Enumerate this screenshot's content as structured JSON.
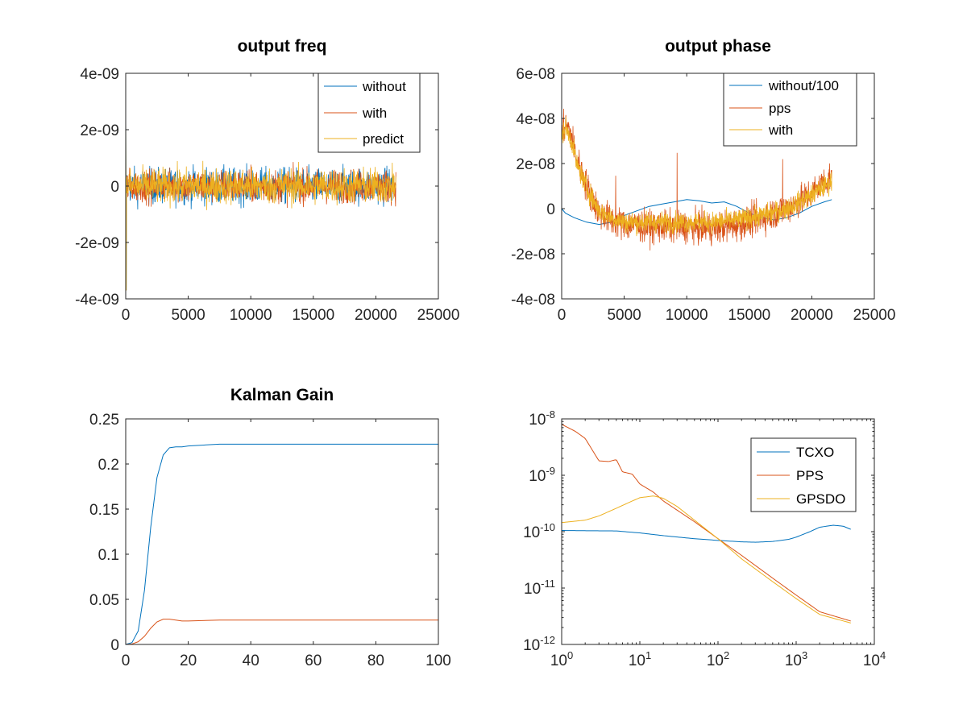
{
  "figure": {
    "background": "#ffffff"
  },
  "colors": {
    "blue": "#0072bd",
    "orange": "#d95319",
    "yellow": "#edb120"
  },
  "chart_data": [
    {
      "type": "line",
      "title": "output freq",
      "xlim": [
        0,
        25000
      ],
      "ylim": [
        -4e-09,
        4e-09
      ],
      "xticks": [
        0,
        5000,
        10000,
        15000,
        20000,
        25000
      ],
      "xtick_labels": [
        "0",
        "5000",
        "10000",
        "15000",
        "20000",
        "25000"
      ],
      "yticks": [
        -4e-09,
        -2e-09,
        0,
        2e-09,
        4e-09
      ],
      "ytick_labels": [
        "-4e-09",
        "-2e-09",
        "0",
        "2e-09",
        "4e-09"
      ],
      "legend": {
        "location": "top-right",
        "entries": [
          "without",
          "with",
          "predict"
        ]
      },
      "series": [
        {
          "name": "without",
          "color": "#0072bd",
          "x_range": [
            0,
            21600
          ],
          "noise": {
            "center": 0,
            "amplitude": 7e-10,
            "spike_start": 3e-09,
            "spike_min": -3.7e-09
          }
        },
        {
          "name": "with",
          "color": "#d95319",
          "x_range": [
            0,
            21600
          ],
          "noise": {
            "center": 0,
            "amplitude": 6.5e-10
          }
        },
        {
          "name": "predict",
          "color": "#edb120",
          "x_range": [
            0,
            21600
          ],
          "noise": {
            "center": 0,
            "amplitude": 7e-10,
            "spike_start": 3e-09,
            "spike_min": -3.7e-09
          }
        }
      ]
    },
    {
      "type": "line",
      "title": "output phase",
      "xlim": [
        0,
        25000
      ],
      "ylim": [
        -4e-08,
        6e-08
      ],
      "xticks": [
        0,
        5000,
        10000,
        15000,
        20000,
        25000
      ],
      "xtick_labels": [
        "0",
        "5000",
        "10000",
        "15000",
        "20000",
        "25000"
      ],
      "yticks": [
        -4e-08,
        -2e-08,
        0,
        2e-08,
        4e-08,
        6e-08
      ],
      "ytick_labels": [
        "-4e-08",
        "-2e-08",
        "0",
        "2e-08",
        "4e-08",
        "6e-08"
      ],
      "legend": {
        "location": "top-right",
        "entries": [
          "without/100",
          "pps",
          "with"
        ]
      },
      "series": [
        {
          "name": "without/100",
          "color": "#0072bd",
          "x": [
            0,
            300,
            1000,
            2000,
            3000,
            4000,
            5000,
            6000,
            7000,
            8000,
            9000,
            10000,
            11000,
            12000,
            13000,
            14000,
            15000,
            16000,
            17000,
            18000,
            19000,
            20000,
            21000,
            21600
          ],
          "y": [
            0,
            -2e-09,
            -4e-09,
            -6e-09,
            -7e-09,
            -6e-09,
            -3e-09,
            -1e-09,
            1e-09,
            2e-09,
            3e-09,
            4e-09,
            3.5e-09,
            2.5e-09,
            3e-09,
            1e-09,
            -2e-09,
            -4e-09,
            -5e-09,
            -4e-09,
            -2e-09,
            1e-09,
            3e-09,
            4e-09
          ]
        },
        {
          "name": "pps",
          "color": "#d95319",
          "trend_x": [
            0,
            300,
            800,
            1200,
            2000,
            3000,
            4000,
            5000,
            7000,
            10000,
            12000,
            14000,
            16000,
            18000,
            19000,
            20000,
            21000,
            21600
          ],
          "trend_y": [
            3.4e-08,
            3.8e-08,
            3.2e-08,
            2.2e-08,
            1e-08,
            -2e-09,
            -5e-09,
            -7e-09,
            -8e-09,
            -8e-09,
            -9e-09,
            -7e-09,
            -4e-09,
            0,
            3e-09,
            7e-09,
            1.2e-08,
            1.4e-08
          ],
          "noise_amplitude": 7e-09
        },
        {
          "name": "with",
          "color": "#edb120",
          "trend_x": [
            0,
            300,
            800,
            1200,
            2000,
            3000,
            4000,
            5000,
            7000,
            10000,
            12000,
            14000,
            16000,
            18000,
            19000,
            20000,
            21000,
            21600
          ],
          "trend_y": [
            3.2e-08,
            3.6e-08,
            3e-08,
            2e-08,
            9e-09,
            -1e-09,
            -4e-09,
            -6e-09,
            -6e-09,
            -6e-09,
            -6e-09,
            -5e-09,
            -3e-09,
            0,
            3e-09,
            6e-09,
            1e-08,
            1.2e-08
          ],
          "noise_amplitude": 4.5e-09
        }
      ]
    },
    {
      "type": "line",
      "title": "Kalman Gain",
      "xlim": [
        0,
        100
      ],
      "ylim": [
        0,
        0.25
      ],
      "xticks": [
        0,
        20,
        40,
        60,
        80,
        100
      ],
      "xtick_labels": [
        "0",
        "20",
        "40",
        "60",
        "80",
        "100"
      ],
      "yticks": [
        0,
        0.05,
        0.1,
        0.15,
        0.2,
        0.25
      ],
      "ytick_labels": [
        "0",
        "0.05",
        "0.1",
        "0.15",
        "0.2",
        "0.25"
      ],
      "series": [
        {
          "color": "#0072bd",
          "x": [
            0,
            2,
            4,
            6,
            8,
            10,
            12,
            14,
            16,
            18,
            20,
            25,
            30,
            40,
            60,
            100
          ],
          "y": [
            0,
            0.002,
            0.015,
            0.06,
            0.13,
            0.185,
            0.21,
            0.218,
            0.219,
            0.219,
            0.22,
            0.221,
            0.222,
            0.222,
            0.222,
            0.222
          ]
        },
        {
          "color": "#d95319",
          "x": [
            0,
            2,
            4,
            6,
            8,
            10,
            12,
            14,
            16,
            18,
            20,
            30,
            40,
            60,
            100
          ],
          "y": [
            0,
            0.0005,
            0.003,
            0.009,
            0.018,
            0.025,
            0.028,
            0.028,
            0.027,
            0.026,
            0.026,
            0.027,
            0.027,
            0.027,
            0.027
          ]
        }
      ]
    },
    {
      "type": "line",
      "title": "",
      "xscale": "log",
      "yscale": "log",
      "xlim": [
        1,
        10000
      ],
      "ylim": [
        1e-12,
        1e-08
      ],
      "xticks": [
        1,
        10,
        100,
        1000,
        10000
      ],
      "xtick_labels": [
        {
          "base": "10",
          "exp": "0"
        },
        {
          "base": "10",
          "exp": "1"
        },
        {
          "base": "10",
          "exp": "2"
        },
        {
          "base": "10",
          "exp": "3"
        },
        {
          "base": "10",
          "exp": "4"
        }
      ],
      "yticks": [
        1e-12,
        1e-11,
        1e-10,
        1e-09,
        1e-08
      ],
      "ytick_labels": [
        {
          "base": "10",
          "exp": "-12"
        },
        {
          "base": "10",
          "exp": "-11"
        },
        {
          "base": "10",
          "exp": "-10"
        },
        {
          "base": "10",
          "exp": "-9"
        },
        {
          "base": "10",
          "exp": "-8"
        }
      ],
      "legend": {
        "location": "top-right",
        "entries": [
          "TCXO",
          "PPS",
          "GPSDO"
        ]
      },
      "series": [
        {
          "name": "TCXO",
          "color": "#0072bd",
          "x": [
            1,
            2,
            5,
            10,
            20,
            50,
            100,
            200,
            300,
            500,
            800,
            1000,
            1500,
            2000,
            3000,
            4000,
            5000
          ],
          "y": [
            1.05e-10,
            1.04e-10,
            1.03e-10,
            9.5e-11,
            8.5e-11,
            7.5e-11,
            7e-11,
            6.6e-11,
            6.5e-11,
            6.7e-11,
            7.3e-11,
            8e-11,
            1e-10,
            1.2e-10,
            1.3e-10,
            1.25e-10,
            1.1e-10
          ]
        },
        {
          "name": "PPS",
          "color": "#d95319",
          "x": [
            1,
            1.5,
            2,
            3,
            4,
            5,
            6,
            8,
            10,
            15,
            20,
            50,
            100,
            200,
            500,
            1000,
            2000,
            5000
          ],
          "y": [
            8e-09,
            6e-09,
            4.5e-09,
            1.8e-09,
            1.75e-09,
            1.9e-09,
            1.15e-09,
            1.05e-09,
            7e-10,
            5e-10,
            3.5e-10,
            1.5e-10,
            7.5e-11,
            3.8e-11,
            1.5e-11,
            7.5e-12,
            3.8e-12,
            2.6e-12
          ]
        },
        {
          "name": "GPSDO",
          "color": "#edb120",
          "x": [
            1,
            2,
            3,
            5,
            8,
            10,
            15,
            20,
            30,
            50,
            100,
            200,
            500,
            1000,
            2000,
            5000
          ],
          "y": [
            1.45e-10,
            1.6e-10,
            1.9e-10,
            2.6e-10,
            3.5e-10,
            4e-10,
            4.3e-10,
            3.9e-10,
            2.8e-10,
            1.6e-10,
            7.5e-11,
            3.3e-11,
            1.3e-11,
            6.5e-12,
            3.4e-12,
            2.4e-12
          ]
        }
      ]
    }
  ]
}
